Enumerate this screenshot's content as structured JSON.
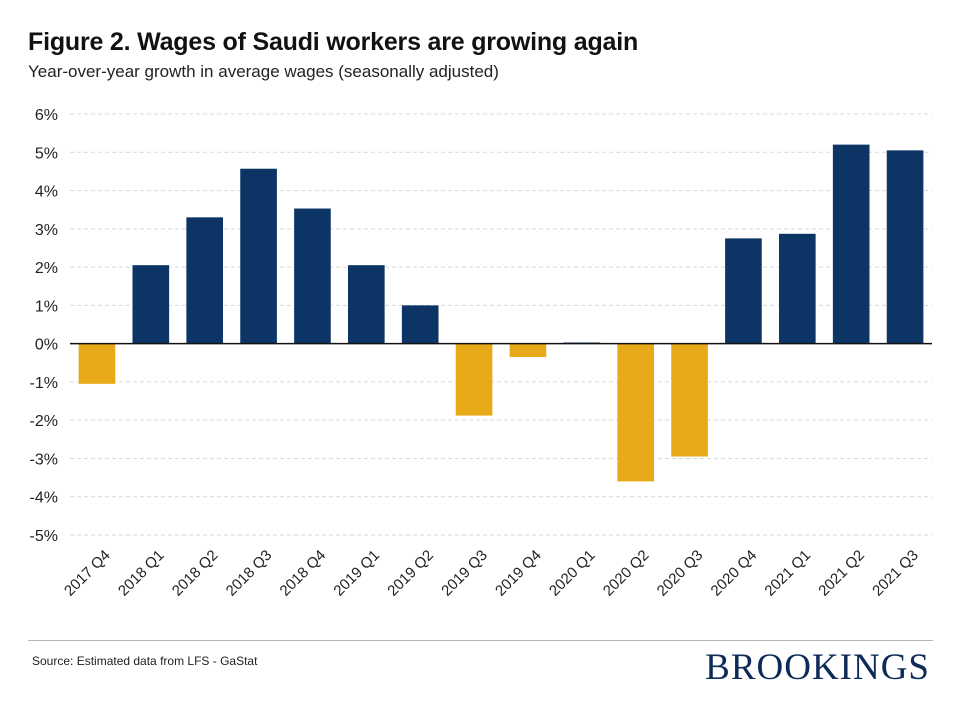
{
  "header": {
    "title": "Figure 2. Wages of Saudi workers are growing again",
    "subtitle": "Year-over-year growth in average wages (seasonally adjusted)"
  },
  "footer": {
    "source": "Source: Estimated data from LFS - GaStat",
    "logo_text": "BROOKINGS"
  },
  "colors": {
    "positive": "#0c3566",
    "negative": "#e9aa19",
    "grid": "#d9d9d9",
    "zero_line": "#111111"
  },
  "chart_data": {
    "type": "bar",
    "title": "Figure 2. Wages of Saudi workers are growing again",
    "subtitle": "Year-over-year growth in average wages (seasonally adjusted)",
    "xlabel": "",
    "ylabel": "",
    "categories": [
      "2017 Q4",
      "2018 Q1",
      "2018 Q2",
      "2018 Q3",
      "2018 Q4",
      "2019 Q1",
      "2019 Q2",
      "2019 Q3",
      "2019 Q4",
      "2020 Q1",
      "2020 Q2",
      "2020 Q3",
      "2020 Q4",
      "2021 Q1",
      "2021 Q2",
      "2021 Q3"
    ],
    "values": [
      -1.05,
      2.05,
      3.3,
      4.57,
      3.53,
      2.05,
      1.0,
      -1.88,
      -0.35,
      0.03,
      -3.6,
      -2.95,
      2.75,
      2.87,
      5.2,
      5.05
    ],
    "ylim": [
      -5,
      6
    ],
    "yticks": [
      6,
      5,
      4,
      3,
      2,
      1,
      0,
      -1,
      -2,
      -3,
      -4,
      -5
    ],
    "ytick_labels": [
      "6%",
      "5%",
      "4%",
      "3%",
      "2%",
      "1%",
      "0%",
      "-1%",
      "-2%",
      "-3%",
      "-4%",
      "-5%"
    ],
    "grid": true,
    "legend": "none"
  }
}
